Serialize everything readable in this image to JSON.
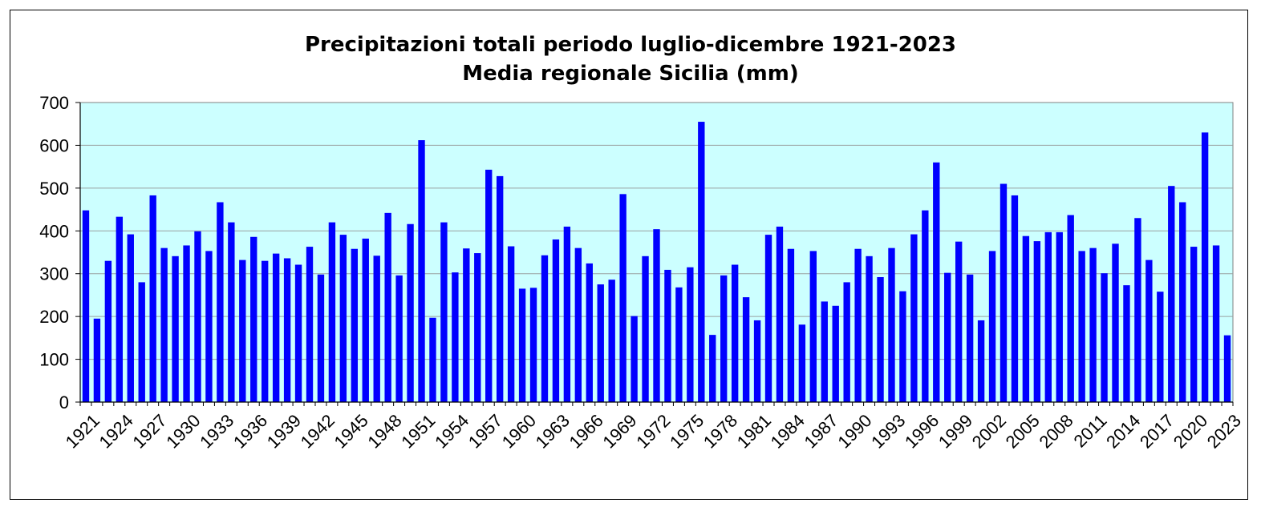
{
  "chart_data": {
    "type": "bar",
    "title": "Precipitazioni totali periodo luglio-dicembre 1921-2023",
    "subtitle": "Media regionale Sicilia (mm)",
    "xlabel": "",
    "ylabel": "",
    "ylim": [
      0,
      700
    ],
    "yticks": [
      0,
      100,
      200,
      300,
      400,
      500,
      600,
      700
    ],
    "grid": true,
    "legend": "none",
    "bar_color": "#0000FF",
    "plot_background": "#CCFFFF",
    "categories": [
      1921,
      1922,
      1923,
      1924,
      1925,
      1926,
      1927,
      1928,
      1929,
      1930,
      1931,
      1932,
      1933,
      1934,
      1935,
      1936,
      1937,
      1938,
      1939,
      1940,
      1941,
      1942,
      1943,
      1944,
      1945,
      1946,
      1947,
      1948,
      1949,
      1950,
      1951,
      1952,
      1953,
      1954,
      1955,
      1956,
      1957,
      1958,
      1959,
      1960,
      1961,
      1962,
      1963,
      1964,
      1965,
      1966,
      1967,
      1968,
      1969,
      1970,
      1971,
      1972,
      1973,
      1974,
      1975,
      1976,
      1977,
      1978,
      1979,
      1980,
      1981,
      1982,
      1983,
      1984,
      1985,
      1986,
      1987,
      1988,
      1989,
      1990,
      1991,
      1992,
      1993,
      1994,
      1995,
      1996,
      1997,
      1998,
      1999,
      2000,
      2001,
      2002,
      2003,
      2004,
      2005,
      2006,
      2007,
      2008,
      2009,
      2010,
      2011,
      2012,
      2013,
      2014,
      2015,
      2016,
      2017,
      2018,
      2019,
      2020,
      2021,
      2022,
      2023
    ],
    "tick_labels": [
      "1921",
      "1924",
      "1927",
      "1930",
      "1933",
      "1936",
      "1939",
      "1942",
      "1945",
      "1948",
      "1951",
      "1954",
      "1957",
      "1960",
      "1963",
      "1966",
      "1969",
      "1972",
      "1975",
      "1978",
      "1981",
      "1984",
      "1987",
      "1990",
      "1993",
      "1996",
      "1999",
      "2002",
      "2005",
      "2008",
      "2011",
      "2014",
      "2017",
      "2020",
      "2023"
    ],
    "values": [
      448,
      195,
      330,
      433,
      392,
      280,
      483,
      360,
      341,
      366,
      399,
      353,
      467,
      420,
      332,
      386,
      330,
      347,
      336,
      321,
      363,
      298,
      420,
      391,
      358,
      382,
      342,
      442,
      296,
      416,
      612,
      197,
      420,
      303,
      359,
      348,
      543,
      528,
      364,
      265,
      267,
      343,
      380,
      410,
      360,
      324,
      275,
      286,
      486,
      201,
      341,
      404,
      309,
      268,
      315,
      655,
      157,
      296,
      321,
      245,
      191,
      391,
      410,
      358,
      181,
      353,
      235,
      225,
      280,
      358,
      341,
      292,
      360,
      259,
      392,
      448,
      560,
      302,
      375,
      298,
      191,
      353,
      510,
      483,
      388,
      376,
      397,
      397,
      437,
      353,
      360,
      301,
      370,
      273,
      430,
      332,
      258,
      505,
      467,
      363,
      630,
      366,
      156
    ]
  }
}
